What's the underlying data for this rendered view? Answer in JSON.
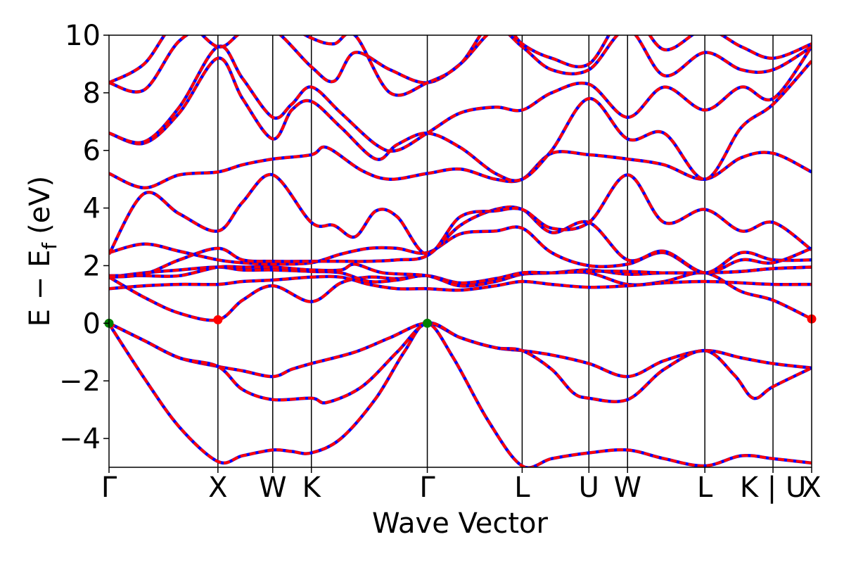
{
  "chart_data": {
    "type": "line",
    "title": "",
    "xlabel": "Wave Vector",
    "ylabel": "E − E",
    "ylabel_sub": "f",
    "ylabel_unit": "(eV)",
    "ylim": [
      -5,
      10
    ],
    "xlim": [
      0,
      1
    ],
    "yticks": [
      -4,
      -2,
      0,
      2,
      4,
      6,
      8,
      10
    ],
    "ytick_labels": [
      "−4",
      "−2",
      "0",
      "2",
      "4",
      "6",
      "8",
      "10"
    ],
    "kpoints": [
      {
        "label": "Γ",
        "x": 0.0
      },
      {
        "label": "X",
        "x": 0.155
      },
      {
        "label": "W",
        "x": 0.233
      },
      {
        "label": "K",
        "x": 0.288
      },
      {
        "label": "Γ",
        "x": 0.453
      },
      {
        "label": "L",
        "x": 0.588
      },
      {
        "label": "U",
        "x": 0.683
      },
      {
        "label": "W",
        "x": 0.738
      },
      {
        "label": "L",
        "x": 0.848
      },
      {
        "label": "K | U",
        "x": 0.945
      },
      {
        "label": "X",
        "x": 1.0
      }
    ],
    "band_colors": {
      "overlay": "#ff0000",
      "underlay": "#0000ff"
    },
    "bands": [
      [
        [
          0,
          -0.02
        ],
        [
          0.05,
          -1.9
        ],
        [
          0.1,
          -3.6
        ],
        [
          0.155,
          -4.8
        ],
        [
          0.19,
          -4.6
        ],
        [
          0.233,
          -4.4
        ],
        [
          0.26,
          -4.45
        ],
        [
          0.288,
          -4.5
        ],
        [
          0.33,
          -4.0
        ],
        [
          0.38,
          -2.6
        ],
        [
          0.42,
          -1.0
        ],
        [
          0.453,
          0.0
        ],
        [
          0.49,
          -1.2
        ],
        [
          0.54,
          -3.4
        ],
        [
          0.588,
          -4.95
        ],
        [
          0.63,
          -4.7
        ],
        [
          0.683,
          -4.5
        ],
        [
          0.738,
          -4.4
        ],
        [
          0.79,
          -4.7
        ],
        [
          0.848,
          -4.95
        ],
        [
          0.9,
          -4.6
        ],
        [
          0.945,
          -4.7
        ],
        [
          1.0,
          -4.85
        ]
      ],
      [
        [
          0,
          0.0
        ],
        [
          0.05,
          -0.6
        ],
        [
          0.1,
          -1.2
        ],
        [
          0.155,
          -1.5
        ],
        [
          0.19,
          -1.65
        ],
        [
          0.233,
          -1.85
        ],
        [
          0.26,
          -1.6
        ],
        [
          0.288,
          -1.4
        ],
        [
          0.35,
          -1.0
        ],
        [
          0.4,
          -0.5
        ],
        [
          0.453,
          0.0
        ],
        [
          0.5,
          -0.5
        ],
        [
          0.55,
          -0.85
        ],
        [
          0.588,
          -0.95
        ],
        [
          0.63,
          -1.1
        ],
        [
          0.683,
          -1.4
        ],
        [
          0.738,
          -1.85
        ],
        [
          0.79,
          -1.3
        ],
        [
          0.848,
          -0.95
        ],
        [
          0.9,
          -1.2
        ],
        [
          0.945,
          -1.4
        ],
        [
          1.0,
          -1.55
        ]
      ],
      [
        [
          0,
          0.0
        ],
        [
          0.05,
          -0.6
        ],
        [
          0.1,
          -1.2
        ],
        [
          0.155,
          -1.5
        ],
        [
          0.19,
          -2.3
        ],
        [
          0.233,
          -2.65
        ],
        [
          0.288,
          -2.6
        ],
        [
          0.31,
          -2.75
        ],
        [
          0.36,
          -2.2
        ],
        [
          0.41,
          -1.0
        ],
        [
          0.453,
          0.0
        ],
        [
          0.5,
          -0.5
        ],
        [
          0.55,
          -0.85
        ],
        [
          0.588,
          -0.95
        ],
        [
          0.63,
          -1.6
        ],
        [
          0.66,
          -2.4
        ],
        [
          0.683,
          -2.6
        ],
        [
          0.738,
          -2.65
        ],
        [
          0.79,
          -1.6
        ],
        [
          0.848,
          -0.95
        ],
        [
          0.89,
          -1.8
        ],
        [
          0.917,
          -2.6
        ],
        [
          0.945,
          -2.2
        ],
        [
          1.0,
          -1.55
        ]
      ],
      [
        [
          0,
          1.6
        ],
        [
          0.05,
          0.9
        ],
        [
          0.1,
          0.35
        ],
        [
          0.155,
          0.12
        ],
        [
          0.19,
          0.8
        ],
        [
          0.233,
          1.3
        ],
        [
          0.288,
          0.75
        ],
        [
          0.33,
          1.4
        ],
        [
          0.37,
          1.6
        ],
        [
          0.41,
          1.55
        ],
        [
          0.453,
          1.65
        ],
        [
          0.5,
          1.4
        ],
        [
          0.55,
          1.55
        ],
        [
          0.588,
          1.75
        ],
        [
          0.63,
          1.75
        ],
        [
          0.683,
          1.75
        ],
        [
          0.738,
          1.35
        ],
        [
          0.79,
          1.45
        ],
        [
          0.848,
          1.75
        ],
        [
          0.9,
          1.1
        ],
        [
          0.945,
          0.8
        ],
        [
          1.0,
          0.15
        ]
      ],
      [
        [
          0,
          1.2
        ],
        [
          0.05,
          1.3
        ],
        [
          0.1,
          1.35
        ],
        [
          0.155,
          1.35
        ],
        [
          0.19,
          1.45
        ],
        [
          0.233,
          1.5
        ],
        [
          0.288,
          1.6
        ],
        [
          0.33,
          1.6
        ],
        [
          0.37,
          1.35
        ],
        [
          0.41,
          1.2
        ],
        [
          0.453,
          1.2
        ],
        [
          0.5,
          1.15
        ],
        [
          0.55,
          1.3
        ],
        [
          0.588,
          1.45
        ],
        [
          0.63,
          1.35
        ],
        [
          0.683,
          1.25
        ],
        [
          0.738,
          1.3
        ],
        [
          0.79,
          1.4
        ],
        [
          0.848,
          1.45
        ],
        [
          0.9,
          1.4
        ],
        [
          0.945,
          1.35
        ],
        [
          1.0,
          1.35
        ]
      ],
      [
        [
          0,
          1.6
        ],
        [
          0.05,
          1.75
        ],
        [
          0.1,
          1.85
        ],
        [
          0.155,
          1.95
        ],
        [
          0.19,
          1.85
        ],
        [
          0.233,
          1.85
        ],
        [
          0.288,
          1.8
        ],
        [
          0.33,
          1.75
        ],
        [
          0.37,
          1.45
        ],
        [
          0.41,
          1.5
        ],
        [
          0.453,
          1.65
        ],
        [
          0.5,
          1.3
        ],
        [
          0.55,
          1.45
        ],
        [
          0.588,
          1.7
        ],
        [
          0.63,
          1.75
        ],
        [
          0.683,
          1.85
        ],
        [
          0.738,
          1.7
        ],
        [
          0.79,
          1.75
        ],
        [
          0.848,
          1.75
        ],
        [
          0.9,
          1.8
        ],
        [
          0.945,
          1.9
        ],
        [
          1.0,
          1.95
        ]
      ],
      [
        [
          0,
          1.65
        ],
        [
          0.05,
          1.65
        ],
        [
          0.1,
          1.65
        ],
        [
          0.155,
          1.95
        ],
        [
          0.19,
          1.95
        ],
        [
          0.233,
          1.95
        ],
        [
          0.288,
          1.85
        ],
        [
          0.33,
          1.85
        ],
        [
          0.35,
          2.05
        ],
        [
          0.39,
          1.75
        ],
        [
          0.453,
          1.65
        ],
        [
          0.5,
          1.3
        ],
        [
          0.55,
          1.45
        ],
        [
          0.588,
          1.75
        ],
        [
          0.63,
          1.75
        ],
        [
          0.683,
          1.8
        ],
        [
          0.738,
          1.8
        ],
        [
          0.79,
          1.75
        ],
        [
          0.848,
          1.75
        ],
        [
          0.9,
          1.8
        ],
        [
          0.945,
          1.9
        ],
        [
          1.0,
          1.95
        ]
      ],
      [
        [
          0,
          2.45
        ],
        [
          0.05,
          2.75
        ],
        [
          0.1,
          2.5
        ],
        [
          0.155,
          2.2
        ],
        [
          0.19,
          2.1
        ],
        [
          0.233,
          2.05
        ],
        [
          0.288,
          2.1
        ],
        [
          0.33,
          2.4
        ],
        [
          0.37,
          2.6
        ],
        [
          0.41,
          2.6
        ],
        [
          0.453,
          2.45
        ],
        [
          0.5,
          3.1
        ],
        [
          0.55,
          3.2
        ],
        [
          0.588,
          3.3
        ],
        [
          0.63,
          2.45
        ],
        [
          0.683,
          2.0
        ],
        [
          0.738,
          2.05
        ],
        [
          0.79,
          2.45
        ],
        [
          0.848,
          1.75
        ],
        [
          0.9,
          2.45
        ],
        [
          0.945,
          2.2
        ],
        [
          1.0,
          2.2
        ]
      ],
      [
        [
          0,
          1.6
        ],
        [
          0.05,
          1.7
        ],
        [
          0.1,
          2.2
        ],
        [
          0.155,
          2.6
        ],
        [
          0.19,
          2.2
        ],
        [
          0.233,
          2.15
        ],
        [
          0.288,
          2.15
        ],
        [
          0.33,
          2.15
        ],
        [
          0.37,
          2.15
        ],
        [
          0.41,
          2.2
        ],
        [
          0.453,
          2.35
        ],
        [
          0.5,
          3.4
        ],
        [
          0.55,
          3.95
        ],
        [
          0.588,
          3.95
        ],
        [
          0.63,
          3.15
        ],
        [
          0.683,
          3.5
        ],
        [
          0.738,
          2.2
        ],
        [
          0.79,
          2.5
        ],
        [
          0.848,
          1.75
        ],
        [
          0.9,
          2.2
        ],
        [
          0.945,
          2.1
        ],
        [
          1.0,
          2.6
        ]
      ],
      [
        [
          0,
          2.4
        ],
        [
          0.05,
          4.5
        ],
        [
          0.1,
          3.8
        ],
        [
          0.155,
          3.2
        ],
        [
          0.19,
          4.2
        ],
        [
          0.233,
          5.15
        ],
        [
          0.288,
          3.5
        ],
        [
          0.32,
          3.4
        ],
        [
          0.35,
          3.0
        ],
        [
          0.38,
          3.9
        ],
        [
          0.41,
          3.7
        ],
        [
          0.453,
          2.4
        ],
        [
          0.5,
          3.7
        ],
        [
          0.55,
          3.9
        ],
        [
          0.588,
          3.95
        ],
        [
          0.63,
          3.3
        ],
        [
          0.683,
          3.5
        ],
        [
          0.738,
          5.15
        ],
        [
          0.79,
          3.5
        ],
        [
          0.848,
          3.95
        ],
        [
          0.9,
          3.2
        ],
        [
          0.945,
          3.5
        ],
        [
          1.0,
          2.55
        ]
      ],
      [
        [
          0,
          5.2
        ],
        [
          0.05,
          4.7
        ],
        [
          0.1,
          5.15
        ],
        [
          0.155,
          5.25
        ],
        [
          0.19,
          5.5
        ],
        [
          0.233,
          5.7
        ],
        [
          0.288,
          5.85
        ],
        [
          0.31,
          6.1
        ],
        [
          0.36,
          5.3
        ],
        [
          0.4,
          5.0
        ],
        [
          0.453,
          5.2
        ],
        [
          0.5,
          5.35
        ],
        [
          0.55,
          5.0
        ],
        [
          0.588,
          5.0
        ],
        [
          0.63,
          5.9
        ],
        [
          0.683,
          5.85
        ],
        [
          0.738,
          5.7
        ],
        [
          0.79,
          5.5
        ],
        [
          0.848,
          5.0
        ],
        [
          0.9,
          5.75
        ],
        [
          0.945,
          5.9
        ],
        [
          1.0,
          5.25
        ]
      ],
      [
        [
          0,
          6.6
        ],
        [
          0.05,
          6.25
        ],
        [
          0.1,
          7.3
        ],
        [
          0.155,
          9.2
        ],
        [
          0.19,
          7.8
        ],
        [
          0.233,
          6.4
        ],
        [
          0.26,
          7.4
        ],
        [
          0.288,
          7.7
        ],
        [
          0.33,
          6.8
        ],
        [
          0.38,
          5.7
        ],
        [
          0.41,
          6.2
        ],
        [
          0.453,
          6.6
        ],
        [
          0.5,
          6.1
        ],
        [
          0.55,
          5.2
        ],
        [
          0.588,
          5.0
        ],
        [
          0.63,
          6.0
        ],
        [
          0.683,
          7.8
        ],
        [
          0.738,
          6.4
        ],
        [
          0.79,
          6.6
        ],
        [
          0.848,
          5.0
        ],
        [
          0.9,
          6.8
        ],
        [
          0.945,
          7.6
        ],
        [
          1.0,
          9.1
        ]
      ],
      [
        [
          0,
          6.6
        ],
        [
          0.05,
          6.3
        ],
        [
          0.1,
          7.5
        ],
        [
          0.155,
          9.6
        ],
        [
          0.19,
          8.5
        ],
        [
          0.233,
          7.15
        ],
        [
          0.26,
          7.6
        ],
        [
          0.288,
          8.2
        ],
        [
          0.33,
          7.3
        ],
        [
          0.38,
          6.2
        ],
        [
          0.41,
          6.0
        ],
        [
          0.453,
          6.6
        ],
        [
          0.5,
          7.3
        ],
        [
          0.55,
          7.5
        ],
        [
          0.588,
          7.4
        ],
        [
          0.63,
          8.0
        ],
        [
          0.683,
          8.3
        ],
        [
          0.738,
          7.15
        ],
        [
          0.79,
          8.2
        ],
        [
          0.848,
          7.4
        ],
        [
          0.9,
          8.2
        ],
        [
          0.945,
          7.8
        ],
        [
          1.0,
          9.6
        ]
      ],
      [
        [
          0,
          8.35
        ],
        [
          0.05,
          9.0
        ],
        [
          0.1,
          10.5
        ],
        [
          0.155,
          9.6
        ],
        [
          0.19,
          10.1
        ],
        [
          0.233,
          10.2
        ],
        [
          0.288,
          8.9
        ],
        [
          0.32,
          8.4
        ],
        [
          0.35,
          9.4
        ],
        [
          0.4,
          8.8
        ],
        [
          0.453,
          8.35
        ],
        [
          0.5,
          9.0
        ],
        [
          0.55,
          10.2
        ],
        [
          0.588,
          9.6
        ],
        [
          0.63,
          8.8
        ],
        [
          0.683,
          8.8
        ],
        [
          0.738,
          10.2
        ],
        [
          0.79,
          8.6
        ],
        [
          0.848,
          9.4
        ],
        [
          0.9,
          8.8
        ],
        [
          0.945,
          8.8
        ],
        [
          1.0,
          9.6
        ]
      ],
      [
        [
          0,
          8.35
        ],
        [
          0.05,
          8.1
        ],
        [
          0.1,
          9.8
        ],
        [
          0.155,
          10.5
        ],
        [
          0.19,
          10.6
        ],
        [
          0.233,
          10.6
        ],
        [
          0.288,
          9.9
        ],
        [
          0.32,
          9.7
        ],
        [
          0.35,
          10.0
        ],
        [
          0.4,
          8.0
        ],
        [
          0.453,
          8.35
        ],
        [
          0.5,
          9.0
        ],
        [
          0.55,
          10.6
        ],
        [
          0.588,
          9.7
        ],
        [
          0.63,
          9.2
        ],
        [
          0.683,
          9.0
        ],
        [
          0.738,
          10.8
        ],
        [
          0.79,
          9.5
        ],
        [
          0.848,
          10.2
        ],
        [
          0.9,
          9.6
        ],
        [
          0.945,
          9.2
        ],
        [
          1.0,
          9.7
        ]
      ]
    ],
    "markers": [
      {
        "x": 0.0,
        "y": 0.0,
        "color": "#008000"
      },
      {
        "x": 0.155,
        "y": 0.12,
        "color": "#ff0000"
      },
      {
        "x": 0.453,
        "y": 0.0,
        "color": "#008000"
      },
      {
        "x": 1.0,
        "y": 0.15,
        "color": "#ff0000"
      }
    ]
  }
}
